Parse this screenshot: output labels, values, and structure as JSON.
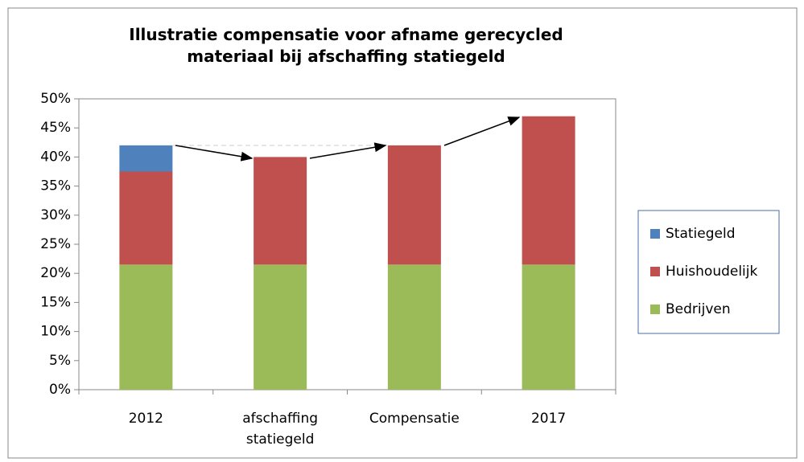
{
  "chart_data": {
    "type": "stacked_bar",
    "title": "Illustratie compensatie voor afname gerecycled materiaal bij afschaffing statiegeld",
    "categories": [
      "2012",
      "afschaffing statiegeld",
      "Compensatie",
      "2017"
    ],
    "series": [
      {
        "name": "Bedrijven",
        "color": "#9bbb59",
        "values": [
          21.5,
          21.5,
          21.5,
          21.5
        ]
      },
      {
        "name": "Huishoudelijk",
        "color": "#c0504d",
        "values": [
          16,
          18.5,
          20.5,
          25.5
        ]
      },
      {
        "name": "Statiegeld",
        "color": "#4f81bd",
        "values": [
          4.5,
          0,
          0,
          0
        ]
      }
    ],
    "ylim": [
      0,
      50
    ],
    "yticks": [
      {
        "value": 0,
        "label": "0%"
      },
      {
        "value": 5,
        "label": "5%"
      },
      {
        "value": 10,
        "label": "10%"
      },
      {
        "value": 15,
        "label": "15%"
      },
      {
        "value": 20,
        "label": "20%"
      },
      {
        "value": 25,
        "label": "25%"
      },
      {
        "value": 30,
        "label": "30%"
      },
      {
        "value": 35,
        "label": "35%"
      },
      {
        "value": 40,
        "label": "40%"
      },
      {
        "value": 45,
        "label": "45%"
      },
      {
        "value": 50,
        "label": "50%"
      }
    ],
    "grid": false,
    "legend": "right"
  }
}
